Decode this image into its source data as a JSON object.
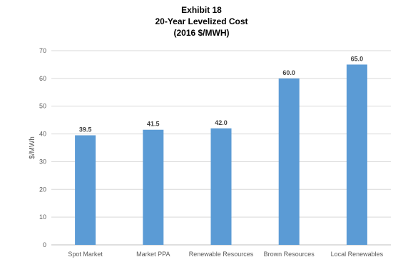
{
  "chart_data": {
    "type": "bar",
    "title": "Exhibit 18",
    "subtitle_lines": [
      "20-Year Levelized Cost",
      "(2016 $/MWH)"
    ],
    "xlabel": "",
    "ylabel": "$/MWh",
    "categories": [
      "Spot Market",
      "Market PPA",
      "Renewable Resources",
      "Brown Resources",
      "Local Renewables"
    ],
    "values": [
      39.5,
      41.5,
      42.0,
      60.0,
      65.0
    ],
    "data_labels": [
      "39.5",
      "41.5",
      "42.0",
      "60.0",
      "65.0"
    ],
    "ylim": [
      0,
      70
    ],
    "yticks": [
      0,
      10,
      20,
      30,
      40,
      50,
      60,
      70
    ],
    "grid": true,
    "legend": "none",
    "bar_color": "#5B9BD5"
  }
}
